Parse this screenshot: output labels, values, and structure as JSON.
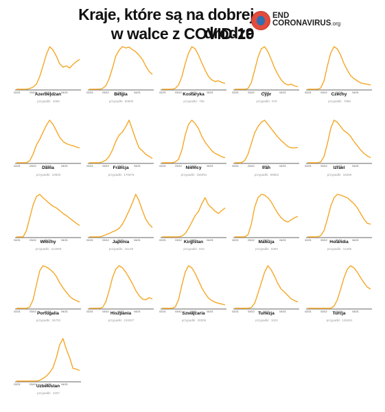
{
  "header": {
    "title_line1": "Kraje, które są na dobrej drodze",
    "title_line2": "w walce z COVID-19",
    "logo_line1": "END",
    "logo_line2": "CORONAVIRUS",
    "logo_suffix": ".org"
  },
  "colors": {
    "line": "#f5a623",
    "axis": "#333333",
    "text": "#111111",
    "muted": "#999999"
  },
  "cases_label": "przypadki:",
  "chart_data": {
    "type": "line",
    "x_ticks": [
      "02/21",
      "03/12",
      "04/01",
      "04/21"
    ],
    "grid": false,
    "panels": [
      {
        "name": "Azerbejdżan",
        "cases": "2060",
        "values": [
          0,
          0,
          0,
          0,
          0.02,
          0.05,
          0.12,
          0.3,
          0.55,
          0.82,
          1.0,
          0.92,
          0.78,
          0.6,
          0.52,
          0.55,
          0.5,
          0.58,
          0.65,
          0.7
        ]
      },
      {
        "name": "Belgia",
        "cases": "50509",
        "values": [
          0,
          0,
          0,
          0,
          0.02,
          0.08,
          0.25,
          0.5,
          0.78,
          0.92,
          1.0,
          0.97,
          0.99,
          0.93,
          0.88,
          0.8,
          0.7,
          0.55,
          0.42,
          0.35
        ]
      },
      {
        "name": "Kostaryka",
        "cases": "755",
        "values": [
          0,
          0,
          0,
          0,
          0.02,
          0.1,
          0.3,
          0.6,
          0.85,
          1.0,
          0.95,
          0.8,
          0.62,
          0.45,
          0.3,
          0.22,
          0.18,
          0.2,
          0.16,
          0.14
        ]
      },
      {
        "name": "Cypr",
        "cases": "878",
        "values": [
          0,
          0,
          0,
          0,
          0.02,
          0.15,
          0.45,
          0.75,
          0.95,
          1.0,
          0.88,
          0.7,
          0.5,
          0.35,
          0.22,
          0.14,
          0.1,
          0.12,
          0.08,
          0.06
        ]
      },
      {
        "name": "Czechy",
        "cases": "7896",
        "values": [
          0,
          0,
          0,
          0,
          0.03,
          0.2,
          0.55,
          0.85,
          1.0,
          0.95,
          0.8,
          0.6,
          0.45,
          0.32,
          0.25,
          0.2,
          0.15,
          0.13,
          0.12,
          0.1
        ]
      },
      {
        "name": "Dania",
        "cases": "10829",
        "values": [
          0,
          0,
          0,
          0,
          0.05,
          0.2,
          0.42,
          0.55,
          0.72,
          0.88,
          1.0,
          0.9,
          0.75,
          0.6,
          0.5,
          0.45,
          0.42,
          0.4,
          0.37,
          0.35
        ]
      },
      {
        "name": "Francja",
        "cases": "170675",
        "values": [
          0,
          0,
          0,
          0,
          0.02,
          0.06,
          0.15,
          0.3,
          0.5,
          0.65,
          0.72,
          0.85,
          1.0,
          0.78,
          0.55,
          0.35,
          0.28,
          0.2,
          0.15,
          0.1
        ]
      },
      {
        "name": "Niemcy",
        "cases": "166091",
        "values": [
          0,
          0,
          0,
          0,
          0.02,
          0.08,
          0.3,
          0.65,
          0.9,
          1.0,
          0.92,
          0.8,
          0.62,
          0.48,
          0.38,
          0.28,
          0.22,
          0.18,
          0.14,
          0.12
        ]
      },
      {
        "name": "Iran",
        "cases": "99852",
        "values": [
          0,
          0,
          0,
          0.05,
          0.2,
          0.45,
          0.7,
          0.85,
          0.95,
          1.0,
          0.9,
          0.8,
          0.7,
          0.6,
          0.52,
          0.45,
          0.38,
          0.35,
          0.35,
          0.36
        ]
      },
      {
        "name": "Izrael",
        "cases": "16269",
        "values": [
          0,
          0,
          0,
          0,
          0.02,
          0.15,
          0.45,
          0.8,
          1.0,
          0.95,
          0.85,
          0.75,
          0.7,
          0.62,
          0.5,
          0.4,
          0.3,
          0.22,
          0.16,
          0.12
        ]
      },
      {
        "name": "Włochy",
        "cases": "212959",
        "values": [
          0,
          0,
          0,
          0.15,
          0.45,
          0.75,
          0.95,
          1.0,
          0.92,
          0.85,
          0.78,
          0.72,
          0.68,
          0.62,
          0.55,
          0.5,
          0.44,
          0.38,
          0.32,
          0.27
        ]
      },
      {
        "name": "Japonia",
        "cases": "15148",
        "values": [
          0,
          0,
          0,
          0,
          0.02,
          0.05,
          0.08,
          0.12,
          0.15,
          0.2,
          0.3,
          0.45,
          0.62,
          0.8,
          1.0,
          0.85,
          0.62,
          0.42,
          0.3,
          0.22
        ]
      },
      {
        "name": "Kirgistan",
        "cases": "843",
        "values": [
          0,
          0,
          0,
          0,
          0,
          0,
          0.02,
          0.08,
          0.2,
          0.35,
          0.5,
          0.6,
          0.78,
          0.92,
          0.75,
          0.68,
          0.6,
          0.55,
          0.62,
          0.68
        ]
      },
      {
        "name": "Malezja",
        "cases": "6383",
        "values": [
          0,
          0,
          0,
          0,
          0.05,
          0.3,
          0.7,
          0.92,
          1.0,
          0.98,
          0.92,
          0.82,
          0.68,
          0.55,
          0.45,
          0.38,
          0.35,
          0.4,
          0.45,
          0.48
        ]
      },
      {
        "name": "Holandia",
        "cases": "41286",
        "values": [
          0,
          0,
          0,
          0,
          0.03,
          0.15,
          0.42,
          0.72,
          0.92,
          1.0,
          0.98,
          0.95,
          0.92,
          0.85,
          0.78,
          0.68,
          0.55,
          0.42,
          0.32,
          0.3
        ]
      },
      {
        "name": "Portugalia",
        "cases": "25702",
        "values": [
          0,
          0,
          0,
          0,
          0.03,
          0.2,
          0.55,
          0.88,
          1.0,
          0.97,
          0.92,
          0.85,
          0.75,
          0.6,
          0.48,
          0.38,
          0.28,
          0.22,
          0.18,
          0.15
        ]
      },
      {
        "name": "Hiszpania",
        "cases": "219327",
        "values": [
          0,
          0,
          0,
          0,
          0.02,
          0.15,
          0.42,
          0.72,
          0.92,
          1.0,
          0.95,
          0.85,
          0.72,
          0.58,
          0.42,
          0.3,
          0.22,
          0.2,
          0.25,
          0.22
        ]
      },
      {
        "name": "Szwajcaria",
        "cases": "30009",
        "values": [
          0,
          0,
          0,
          0,
          0.03,
          0.2,
          0.55,
          0.85,
          1.0,
          0.95,
          0.82,
          0.65,
          0.48,
          0.35,
          0.24,
          0.18,
          0.14,
          0.12,
          0.1,
          0.08
        ]
      },
      {
        "name": "Tunezja",
        "cases": "1022",
        "values": [
          0,
          0,
          0,
          0,
          0,
          0.02,
          0.12,
          0.35,
          0.6,
          0.85,
          1.0,
          0.9,
          0.75,
          0.58,
          0.45,
          0.38,
          0.3,
          0.22,
          0.18,
          0.15
        ]
      },
      {
        "name": "Turcja",
        "cases": "128491",
        "values": [
          0,
          0,
          0,
          0,
          0,
          0,
          0,
          0,
          0.05,
          0.2,
          0.45,
          0.72,
          0.92,
          1.0,
          0.95,
          0.85,
          0.72,
          0.6,
          0.5,
          0.45
        ]
      },
      {
        "name": "Uzbekistan",
        "cases": "2207",
        "values": [
          0,
          0,
          0,
          0,
          0,
          0,
          0,
          0.02,
          0.06,
          0.12,
          0.2,
          0.32,
          0.55,
          0.85,
          1.0,
          0.75,
          0.55,
          0.3,
          0.28,
          0.25
        ]
      }
    ]
  }
}
